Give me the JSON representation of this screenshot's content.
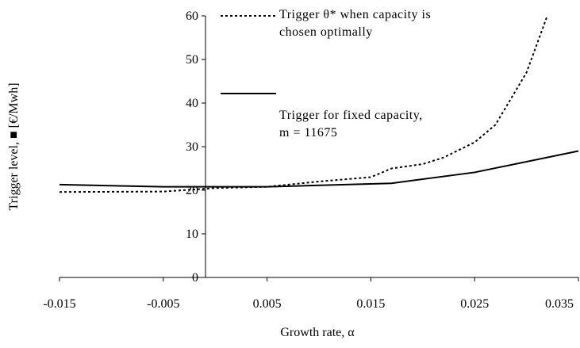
{
  "chart_data": {
    "type": "line",
    "xlabel": "Growth rate, α",
    "ylabel": "Trigger level, ■ [€/Mwh]",
    "xlim": [
      -0.015,
      0.035
    ],
    "xticks": [
      -0.015,
      -0.005,
      0.005,
      0.015,
      0.025,
      0.035
    ],
    "ylim": [
      0,
      60
    ],
    "yticks": [
      0,
      10,
      20,
      30,
      40,
      50,
      60
    ],
    "grid": false,
    "series": [
      {
        "name": "Trigger θ* when capacity is chosen optimally",
        "color": "#000000",
        "dash": "dotted",
        "x": [
          -0.015,
          -0.005,
          0.0,
          0.005,
          0.01,
          0.015,
          0.017,
          0.02,
          0.022,
          0.025,
          0.027,
          0.03,
          0.032
        ],
        "values": [
          19.6,
          19.7,
          20.5,
          20.8,
          22,
          23,
          25,
          26,
          27.5,
          31,
          35,
          47,
          60
        ]
      },
      {
        "name": "Trigger for fixed capacity, m = 11675",
        "color": "#000000",
        "dash": "solid",
        "x": [
          -0.015,
          -0.005,
          0.005,
          0.017,
          0.025,
          0.035
        ],
        "values": [
          21.3,
          20.8,
          20.8,
          21.6,
          24.1,
          29.0
        ]
      }
    ]
  }
}
